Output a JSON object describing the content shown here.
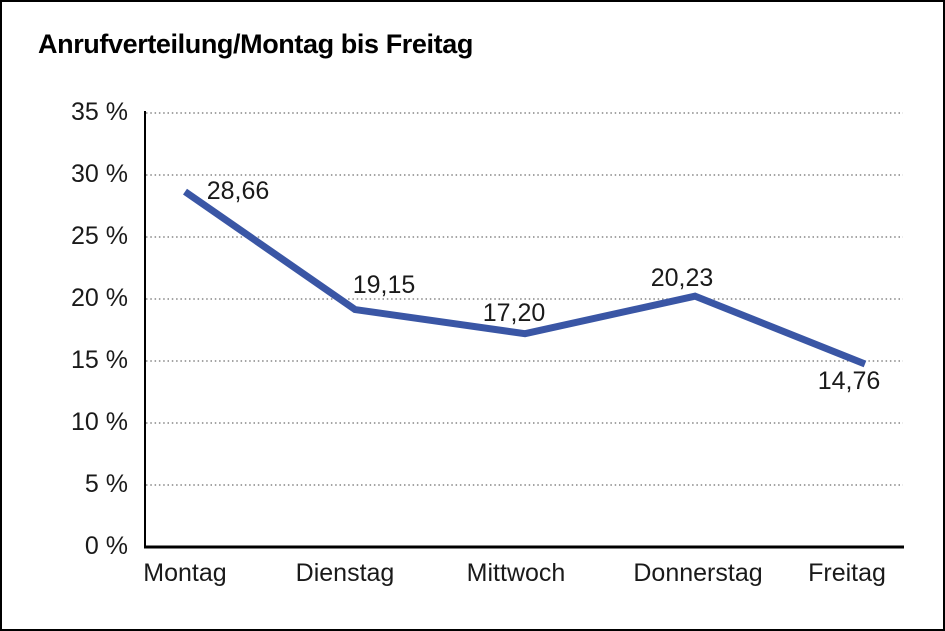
{
  "page": {
    "background": "#ffffff",
    "border_color": "#000000"
  },
  "chart": {
    "title": "Anrufverteilung/Montag bis Freitag"
  },
  "chart_data": {
    "type": "line",
    "title": "Anrufverteilung/Montag bis Freitag",
    "categories": [
      "Montag",
      "Dienstag",
      "Mittwoch",
      "Donnerstag",
      "Freitag"
    ],
    "values": [
      28.66,
      19.15,
      17.2,
      20.23,
      14.76
    ],
    "data_labels": [
      "28,66",
      "19,15",
      "17,20",
      "20,23",
      "14,76"
    ],
    "xlabel": "",
    "ylabel": "",
    "ylim": [
      0,
      35
    ],
    "y_tick_step": 5,
    "y_tick_labels": [
      "0 %",
      "5 %",
      "10 %",
      "15 %",
      "20 %",
      "25 %",
      "30 %",
      "35 %"
    ],
    "grid": "horizontal-dotted",
    "legend_position": "none",
    "series_name": "Anrufverteilung",
    "line_color": "#3A56A5",
    "gridline_color": "#6E6E6E",
    "axis_color": "#000000",
    "text_color": "#1A1A1A"
  }
}
